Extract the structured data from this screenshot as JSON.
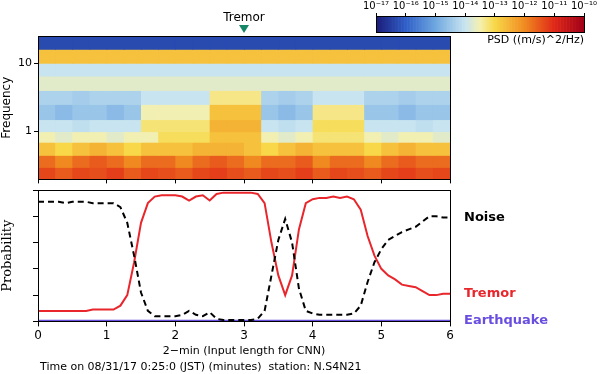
{
  "chart_data": [
    {
      "type": "heatmap",
      "y_label": "Frequency",
      "x_bins": [
        0,
        0.25,
        0.5,
        0.75,
        1,
        1.25,
        1.5,
        1.75,
        2,
        2.25,
        2.5,
        2.75,
        3,
        3.25,
        3.5,
        3.75,
        4,
        4.25,
        4.5,
        4.75,
        5,
        5.25,
        5.5,
        5.75,
        6
      ],
      "y_bins": [
        0.2,
        0.3,
        0.45,
        0.7,
        1,
        1.5,
        2.5,
        4,
        6.5,
        10,
        16,
        25
      ],
      "cells": [
        [
          5e-12,
          3e-12,
          5e-12,
          4e-12,
          6e-12,
          3e-12,
          5e-12,
          4e-12,
          3e-12,
          5e-12,
          6e-12,
          4e-12,
          3e-12,
          5e-12,
          4e-12,
          6e-12,
          3e-12,
          5e-12,
          4e-12,
          3e-12,
          5e-12,
          6e-12,
          4e-12,
          5e-12
        ],
        [
          2e-12,
          1e-12,
          2e-12,
          3e-12,
          2e-12,
          1e-12,
          2e-12,
          2e-12,
          1e-12,
          2e-12,
          3e-12,
          2e-12,
          1e-12,
          2e-12,
          2e-12,
          3e-12,
          1e-12,
          2e-12,
          2e-12,
          1e-12,
          2e-12,
          3e-12,
          2e-12,
          2e-12
        ],
        [
          2e-13,
          1e-13,
          2e-13,
          3e-13,
          2e-13,
          1e-13,
          2e-13,
          2e-13,
          2e-13,
          3e-13,
          3e-13,
          3e-13,
          2e-13,
          1e-13,
          2e-13,
          3e-13,
          2e-13,
          2e-13,
          2e-13,
          1e-13,
          2e-13,
          3e-13,
          2e-13,
          2e-13
        ],
        [
          3e-14,
          2e-14,
          3e-14,
          3e-14,
          2e-14,
          3e-14,
          3e-14,
          8e-14,
          8e-14,
          8e-14,
          2e-13,
          2e-13,
          2e-13,
          3e-14,
          2e-14,
          3e-14,
          6e-14,
          6e-14,
          6e-14,
          3e-14,
          2e-14,
          3e-14,
          3e-14,
          2e-14
        ],
        [
          1e-14,
          1e-14,
          8e-15,
          1e-14,
          1e-14,
          1e-14,
          6e-14,
          6e-14,
          6e-14,
          6e-14,
          3e-13,
          3e-13,
          3e-13,
          1e-14,
          8e-15,
          1e-14,
          8e-14,
          8e-14,
          8e-14,
          1e-14,
          1e-14,
          1e-14,
          8e-15,
          1e-14
        ],
        [
          3e-15,
          2e-15,
          3e-15,
          3e-15,
          2e-15,
          3e-15,
          3e-14,
          3e-14,
          3e-14,
          3e-14,
          2e-13,
          2e-13,
          2e-13,
          3e-15,
          2e-15,
          3e-15,
          5e-14,
          5e-14,
          5e-14,
          3e-15,
          3e-15,
          2e-15,
          3e-15,
          3e-15
        ],
        [
          5e-15,
          5e-15,
          4e-15,
          5e-15,
          5e-15,
          5e-15,
          1e-14,
          1e-14,
          1e-14,
          1e-14,
          5e-14,
          5e-14,
          5e-14,
          5e-15,
          4e-15,
          5e-15,
          1e-14,
          1e-14,
          1e-14,
          5e-15,
          5e-15,
          4e-15,
          5e-15,
          5e-15
        ],
        [
          2e-14,
          2e-14,
          2e-14,
          2e-14,
          2e-14,
          2e-14,
          2e-14,
          2e-14,
          2e-14,
          2e-14,
          2e-14,
          2e-14,
          2e-14,
          2e-14,
          2e-14,
          2e-14,
          2e-14,
          2e-14,
          2e-14,
          2e-14,
          2e-14,
          2e-14,
          2e-14,
          2e-14
        ],
        [
          1e-14,
          1e-14,
          1e-14,
          1e-14,
          1e-14,
          1e-14,
          1e-14,
          1e-14,
          1e-14,
          1e-14,
          1e-14,
          1e-14,
          1e-14,
          1e-14,
          1e-14,
          1e-14,
          1e-14,
          1e-14,
          1e-14,
          1e-14,
          1e-14,
          1e-14,
          1e-14,
          1e-14
        ],
        [
          2e-13,
          2e-13,
          2e-13,
          2e-13,
          2e-13,
          2e-13,
          2e-13,
          2e-13,
          2e-13,
          2e-13,
          2e-13,
          2e-13,
          2e-13,
          2e-13,
          2e-13,
          2e-13,
          2e-13,
          2e-13,
          2e-13,
          2e-13,
          2e-13,
          2e-13,
          2e-13,
          2e-13
        ],
        [
          5e-17,
          5e-17,
          5e-17,
          5e-17,
          5e-17,
          5e-17,
          5e-17,
          5e-17,
          5e-17,
          5e-17,
          5e-17,
          5e-17,
          5e-17,
          5e-17,
          5e-17,
          5e-17,
          5e-17,
          5e-17,
          5e-17,
          5e-17,
          5e-17,
          5e-17,
          5e-17,
          5e-17
        ]
      ],
      "xlim": [
        0,
        6
      ],
      "xticks": [
        0,
        1,
        2,
        3,
        4,
        5,
        6
      ],
      "ylim": [
        0.2,
        25
      ],
      "yticks": [
        1,
        10
      ],
      "log": "y",
      "grid": false,
      "tick_labels": "y",
      "annotations": [
        {
          "text": "Tremor",
          "x": 3
        }
      ],
      "colorbar": {
        "label": "PSD ((m/s)^2/Hz)",
        "lim": [
          1e-17,
          1e-10
        ],
        "log": true,
        "ticks": [
          {
            "value": 1e-17,
            "label": "10⁻¹⁷"
          },
          {
            "value": 1e-16,
            "label": "10⁻¹⁶"
          },
          {
            "value": 1e-15,
            "label": "10⁻¹⁵"
          },
          {
            "value": 1e-14,
            "label": "10⁻¹⁴"
          },
          {
            "value": 1e-13,
            "label": "10⁻¹³"
          },
          {
            "value": 1e-12,
            "label": "10⁻¹²"
          },
          {
            "value": 1e-11,
            "label": "10⁻¹¹"
          },
          {
            "value": 1e-10,
            "label": "10⁻¹⁰"
          }
        ]
      }
    },
    {
      "type": "line",
      "x_label": "2−min (Input length for CNN)",
      "y_label": "Probability",
      "footnote": "Time on 08/31/17 0:25:0 (JST) (minutes)  station: N.S4N21",
      "x": [
        0,
        0.1,
        0.2,
        0.3,
        0.4,
        0.5,
        0.6,
        0.7,
        0.8,
        0.9,
        1,
        1.1,
        1.2,
        1.3,
        1.4,
        1.5,
        1.6,
        1.7,
        1.8,
        1.9,
        2,
        2.1,
        2.2,
        2.3,
        2.4,
        2.5,
        2.6,
        2.7,
        2.8,
        2.9,
        3,
        3.1,
        3.2,
        3.3,
        3.4,
        3.5,
        3.6,
        3.7,
        3.8,
        3.9,
        4,
        4.1,
        4.2,
        4.3,
        4.4,
        4.5,
        4.6,
        4.7,
        4.8,
        4.9,
        5,
        5.1,
        5.2,
        5.3,
        5.4,
        5.5,
        5.6,
        5.7,
        5.8,
        5.9,
        6
      ],
      "series": [
        {
          "name": "Noise",
          "color": "#000000",
          "line_style": "dashed",
          "values": [
            0.91,
            0.91,
            0.91,
            0.91,
            0.9,
            0.91,
            0.91,
            0.91,
            0.9,
            0.9,
            0.9,
            0.9,
            0.87,
            0.75,
            0.5,
            0.22,
            0.08,
            0.04,
            0.04,
            0.04,
            0.04,
            0.05,
            0.08,
            0.05,
            0.04,
            0.07,
            0.02,
            0.01,
            0.01,
            0.01,
            0.01,
            0.01,
            0.02,
            0.08,
            0.35,
            0.62,
            0.78,
            0.6,
            0.25,
            0.08,
            0.06,
            0.05,
            0.05,
            0.05,
            0.05,
            0.05,
            0.06,
            0.12,
            0.3,
            0.45,
            0.55,
            0.62,
            0.65,
            0.68,
            0.7,
            0.72,
            0.76,
            0.8,
            0.8,
            0.79,
            0.79
          ]
        },
        {
          "name": "Tremor",
          "color": "#e8262c",
          "line_style": "solid",
          "values": [
            0.08,
            0.08,
            0.08,
            0.08,
            0.08,
            0.08,
            0.08,
            0.08,
            0.09,
            0.09,
            0.09,
            0.09,
            0.12,
            0.2,
            0.45,
            0.75,
            0.9,
            0.95,
            0.96,
            0.96,
            0.96,
            0.95,
            0.92,
            0.95,
            0.96,
            0.92,
            0.97,
            0.98,
            0.98,
            0.98,
            0.98,
            0.98,
            0.97,
            0.9,
            0.6,
            0.35,
            0.2,
            0.35,
            0.7,
            0.9,
            0.93,
            0.94,
            0.94,
            0.95,
            0.94,
            0.95,
            0.93,
            0.85,
            0.65,
            0.5,
            0.4,
            0.35,
            0.32,
            0.28,
            0.27,
            0.26,
            0.23,
            0.2,
            0.2,
            0.21,
            0.21
          ]
        },
        {
          "name": "Earthquake",
          "color": "#6a4ee0",
          "line_style": "solid",
          "values": [
            0.005,
            0.005,
            0.005,
            0.005,
            0.005,
            0.005,
            0.005,
            0.005,
            0.005,
            0.005,
            0.005,
            0.005,
            0.005,
            0.005,
            0.005,
            0.005,
            0.005,
            0.005,
            0.005,
            0.005,
            0.005,
            0.005,
            0.005,
            0.005,
            0.005,
            0.005,
            0.005,
            0.005,
            0.005,
            0.005,
            0.005,
            0.005,
            0.005,
            0.005,
            0.005,
            0.005,
            0.005,
            0.005,
            0.005,
            0.005,
            0.005,
            0.005,
            0.005,
            0.005,
            0.005,
            0.005,
            0.005,
            0.005,
            0.005,
            0.005,
            0.005,
            0.005,
            0.005,
            0.005,
            0.005,
            0.005,
            0.005,
            0.005,
            0.005,
            0.005,
            0.005
          ]
        }
      ],
      "xlim": [
        0,
        6
      ],
      "xticks": [
        0,
        1,
        2,
        3,
        4,
        5,
        6
      ],
      "ylim": [
        0,
        1
      ],
      "yticks": [
        0,
        0.2,
        0.4,
        0.6,
        0.8,
        1
      ],
      "grid": false,
      "tick_labels": "x",
      "legend": "right"
    }
  ]
}
